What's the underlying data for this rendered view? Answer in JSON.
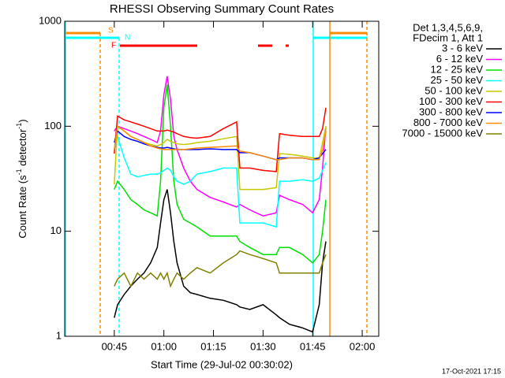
{
  "chart_data": {
    "type": "line",
    "title": "RHESSI Observing Summary Count Rates",
    "xlabel": "Start Time (29-Jul-02 00:30:02)",
    "ylabel": [
      "Count Rate (s",
      "-1",
      " detector",
      "-1",
      ")"
    ],
    "legend_header": [
      "Det 1,3,4,5,6,9,",
      "FDecim 1, Att 1"
    ],
    "annotations": [
      "S",
      "N",
      "F"
    ],
    "footer": "17-Oct-2021 17:15",
    "log_y": true,
    "xlim": [
      0,
      95
    ],
    "xticks": [
      {
        "value": 15,
        "label": "00:45"
      },
      {
        "value": 30,
        "label": "01:00"
      },
      {
        "value": 45,
        "label": "01:15"
      },
      {
        "value": 60,
        "label": "01:30"
      },
      {
        "value": 75,
        "label": "01:45"
      },
      {
        "value": 90,
        "label": "02:00"
      }
    ],
    "ylim": [
      1,
      1000
    ],
    "yticks": [
      1,
      10,
      100,
      1000
    ],
    "x": [
      15,
      16,
      18,
      20,
      22,
      24,
      26,
      28,
      29,
      30,
      31,
      32,
      33,
      34,
      36,
      38,
      40,
      44,
      48,
      52,
      53,
      56,
      60,
      64,
      65,
      68,
      72,
      75,
      77,
      78,
      79
    ],
    "series": [
      {
        "name": "3 - 6 keV",
        "color": "#000000",
        "values": [
          1.5,
          2,
          2.5,
          3,
          3.5,
          4,
          5,
          7,
          12,
          20,
          25,
          15,
          8,
          5,
          3,
          2.6,
          2.5,
          2.3,
          2.2,
          2,
          1.9,
          1.8,
          2,
          1.6,
          1.5,
          1.3,
          1.2,
          1.1,
          2,
          5,
          8
        ]
      },
      {
        "name": "6 - 12 keV",
        "color": "#ff00ff",
        "values": [
          90,
          100,
          95,
          90,
          85,
          80,
          75,
          70,
          90,
          200,
          300,
          180,
          80,
          60,
          40,
          30,
          25,
          21,
          19,
          17,
          18,
          16,
          14,
          15,
          22,
          20,
          18,
          15,
          20,
          40,
          100
        ]
      },
      {
        "name": "12 - 25 keV",
        "color": "#00e000",
        "values": [
          25,
          30,
          25,
          20,
          18,
          16,
          15,
          14,
          30,
          150,
          250,
          100,
          30,
          18,
          13,
          12,
          11,
          9,
          9,
          9,
          8,
          7,
          6,
          6,
          7,
          7,
          6,
          5,
          6,
          10,
          20
        ]
      },
      {
        "name": "25 - 50 keV",
        "color": "#00ffff",
        "values": [
          60,
          80,
          50,
          35,
          33,
          34,
          35,
          35,
          36,
          38,
          40,
          38,
          33,
          30,
          28,
          30,
          35,
          37,
          40,
          40,
          12,
          12,
          12,
          11,
          30,
          30,
          31,
          30,
          32,
          38,
          45
        ]
      },
      {
        "name": "50 - 100 keV",
        "color": "#c8c800",
        "values": [
          28,
          100,
          90,
          80,
          75,
          70,
          67,
          65,
          67,
          70,
          75,
          72,
          70,
          68,
          67,
          68,
          70,
          72,
          76,
          80,
          25,
          25,
          25,
          26,
          55,
          54,
          52,
          50,
          50,
          70,
          100
        ]
      },
      {
        "name": "100 - 300 keV",
        "color": "#ff0000",
        "values": [
          55,
          125,
          115,
          110,
          105,
          100,
          95,
          90,
          90,
          90,
          92,
          90,
          88,
          85,
          80,
          78,
          77,
          80,
          95,
          110,
          40,
          40,
          38,
          37,
          85,
          82,
          80,
          80,
          80,
          95,
          150
        ]
      },
      {
        "name": "300 - 800 keV",
        "color": "#0000ff",
        "values": [
          70,
          90,
          80,
          75,
          72,
          68,
          65,
          63,
          62,
          62,
          63,
          62,
          61,
          60,
          60,
          60,
          60,
          61,
          60,
          60,
          56,
          56,
          52,
          48,
          50,
          50,
          50,
          48,
          50,
          55,
          60
        ]
      },
      {
        "name": "800 - 7000 keV",
        "color": "#ff8c00",
        "values": [
          60,
          100,
          90,
          80,
          75,
          70,
          65,
          62,
          61,
          60,
          60,
          60,
          60,
          60,
          60,
          61,
          62,
          63,
          64,
          65,
          58,
          56,
          52,
          48,
          48,
          50,
          50,
          48,
          48,
          60,
          90
        ]
      },
      {
        "name": "7000 - 15000 keV",
        "color": "#808000",
        "values": [
          3,
          3.5,
          4,
          3,
          4,
          3.5,
          4,
          3.5,
          4,
          3.5,
          4,
          3,
          3.5,
          4,
          3.5,
          4,
          4.5,
          4,
          5,
          6,
          6.5,
          6,
          5.5,
          5,
          4,
          4,
          4,
          4,
          4,
          5,
          6
        ]
      }
    ]
  }
}
